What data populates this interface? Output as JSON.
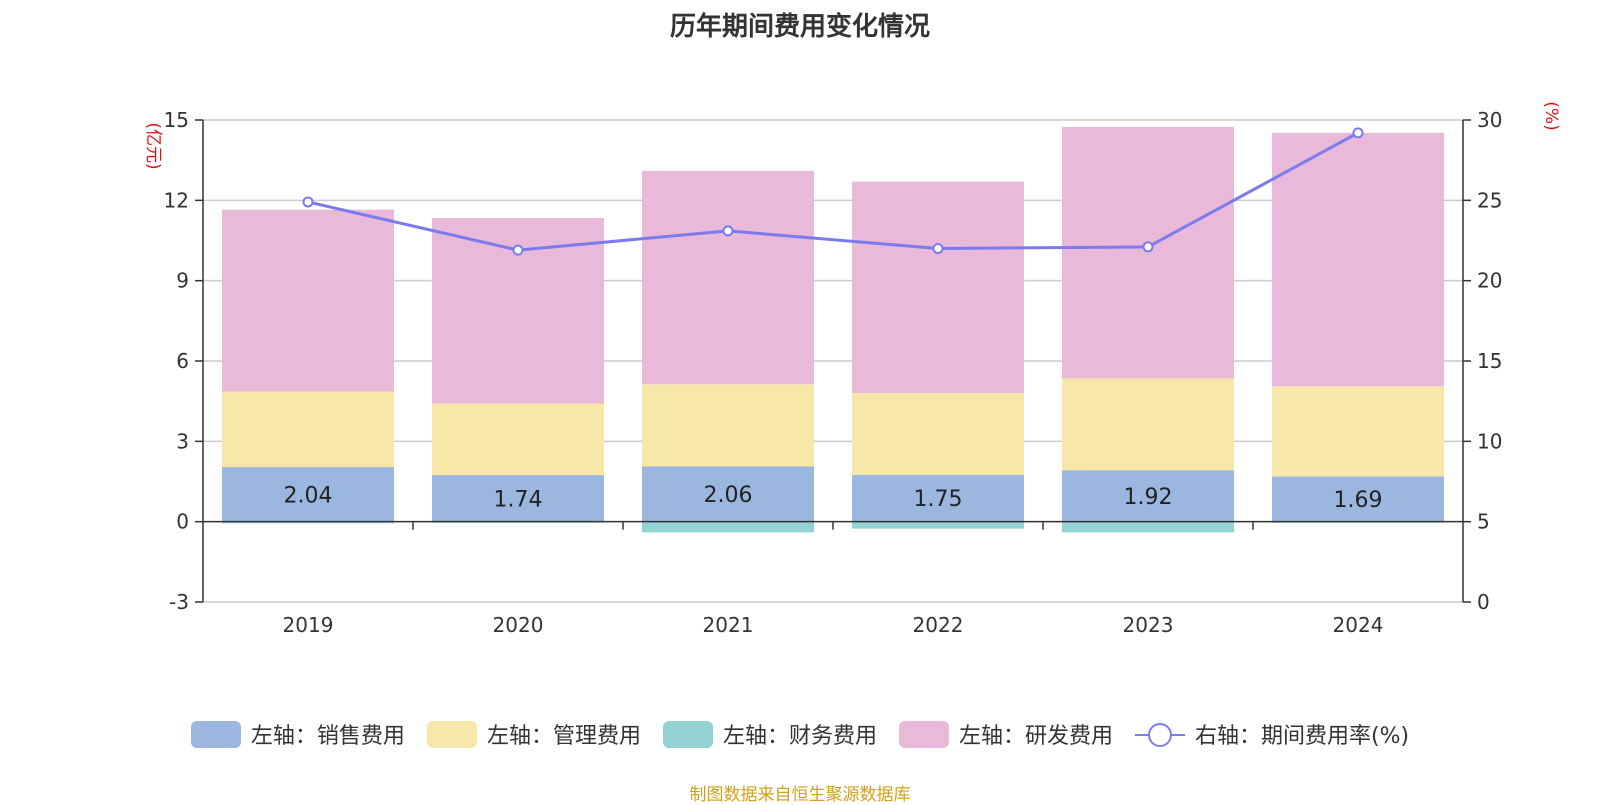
{
  "chart_data": {
    "type": "bar",
    "title": "历年期间费用变化情况",
    "categories": [
      "2019",
      "2020",
      "2021",
      "2022",
      "2023",
      "2024"
    ],
    "left_axis": {
      "unit": "(亿元)",
      "ylim": [
        -3,
        15
      ],
      "ticks": [
        "-3",
        "0",
        "3",
        "6",
        "9",
        "12",
        "15"
      ]
    },
    "right_axis": {
      "unit": "(%)",
      "ylim": [
        0,
        30
      ],
      "ticks": [
        "0",
        "5",
        "10",
        "15",
        "20",
        "25",
        "30"
      ]
    },
    "stacked": true,
    "series": [
      {
        "name": "左轴：销售费用",
        "type": "bar",
        "axis": "left",
        "color": "#9bb7e0",
        "values": [
          2.04,
          1.74,
          2.06,
          1.75,
          1.92,
          1.69
        ],
        "labels": [
          "2.04",
          "1.74",
          "2.06",
          "1.75",
          "1.92",
          "1.69"
        ]
      },
      {
        "name": "左轴：管理费用",
        "type": "bar",
        "axis": "left",
        "color": "#f7e7a8",
        "values": [
          2.82,
          2.67,
          3.07,
          3.05,
          3.43,
          3.37
        ]
      },
      {
        "name": "左轴：财务费用",
        "type": "bar",
        "axis": "left",
        "color": "#94d3d3",
        "values": [
          -0.06,
          -0.03,
          -0.4,
          -0.26,
          -0.4,
          -0.04
        ]
      },
      {
        "name": "左轴：研发费用",
        "type": "bar",
        "axis": "left",
        "color": "#e8b9d9",
        "values": [
          6.79,
          6.93,
          7.97,
          7.9,
          9.39,
          9.46
        ]
      },
      {
        "name": "右轴：期间费用率(%)",
        "type": "line",
        "axis": "right",
        "color": "#7b7bef",
        "values": [
          24.9,
          21.9,
          23.1,
          22.0,
          22.1,
          29.2
        ]
      }
    ],
    "grid": true,
    "legend_position": "bottom"
  },
  "source": "制图数据来自恒生聚源数据库"
}
